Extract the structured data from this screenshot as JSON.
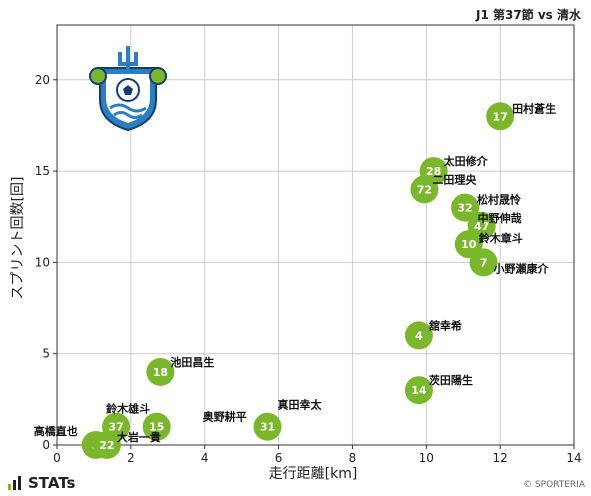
{
  "title": "J1 第37節 vs 清水",
  "footer": {
    "brand": "STATs",
    "copyright": "© SPORTERIA"
  },
  "colors": {
    "point": "#7ab72a",
    "point_text": "#ffffff",
    "grid": "#cccccc"
  },
  "chart_data": {
    "type": "scatter",
    "xlabel": "走行距離[km]",
    "ylabel": "スプリント回数[回]",
    "xlim": [
      0,
      14
    ],
    "ylim": [
      0,
      23
    ],
    "xticks": [
      0,
      2,
      4,
      6,
      8,
      10,
      12,
      14
    ],
    "yticks": [
      0,
      5,
      10,
      15,
      20
    ],
    "grid": true,
    "points": [
      {
        "number": "17",
        "name": "田村蒼生",
        "x": 12.0,
        "y": 18
      },
      {
        "number": "28",
        "name": "太田修介",
        "x": 10.2,
        "y": 15
      },
      {
        "number": "72",
        "name": "二田理央",
        "x": 9.95,
        "y": 14
      },
      {
        "number": "32",
        "name": "松村晟怜",
        "x": 11.05,
        "y": 13
      },
      {
        "number": "47",
        "name": "中野伸哉",
        "x": 11.5,
        "y": 12
      },
      {
        "number": "10",
        "name": "鈴木章斗",
        "x": 11.15,
        "y": 11
      },
      {
        "number": "7",
        "name": "小野瀬康介",
        "x": 11.55,
        "y": 10
      },
      {
        "number": "4",
        "name": "舘幸希",
        "x": 9.8,
        "y": 6
      },
      {
        "number": "14",
        "name": "茨田陽生",
        "x": 9.8,
        "y": 3
      },
      {
        "number": "18",
        "name": "池田昌生",
        "x": 2.8,
        "y": 4
      },
      {
        "number": "31",
        "name": "真田幸太",
        "x": 5.7,
        "y": 1
      },
      {
        "number": "15",
        "name": "奥野耕平",
        "x": 2.7,
        "y": 1
      },
      {
        "number": "37",
        "name": "鈴木雄斗",
        "x": 1.6,
        "y": 1
      },
      {
        "number": "3",
        "name": "高橋直也",
        "x": 1.05,
        "y": 0
      },
      {
        "number": "22",
        "name": "大岩一貴",
        "x": 1.35,
        "y": 0
      }
    ]
  }
}
